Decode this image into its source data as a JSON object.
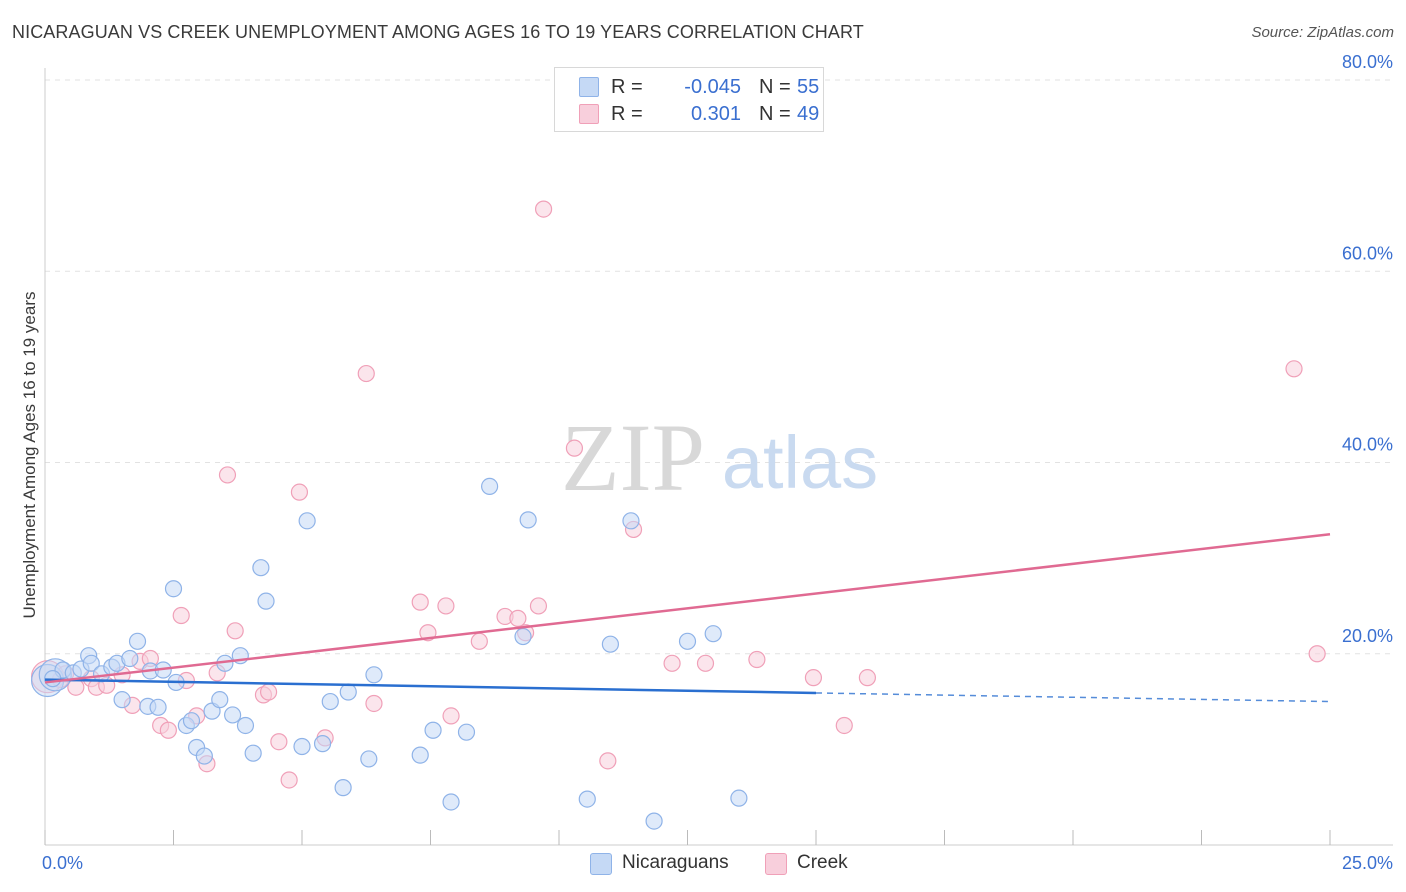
{
  "title": "NICARAGUAN VS CREEK UNEMPLOYMENT AMONG AGES 16 TO 19 YEARS CORRELATION CHART",
  "source": "Source: ZipAtlas.com",
  "watermark": {
    "zip": "ZIP",
    "atlas": "atlas"
  },
  "legend": {
    "rows": [
      {
        "r_label": "R =",
        "r_value": "-0.045",
        "n_label": "N =",
        "n_value": "55"
      },
      {
        "r_label": "R =",
        "r_value": "0.301",
        "n_label": "N =",
        "n_value": "49"
      }
    ],
    "bottom": [
      "Nicaraguans",
      "Creek"
    ]
  },
  "chart_data": {
    "type": "scatter",
    "title": "NICARAGUAN VS CREEK UNEMPLOYMENT AMONG AGES 16 TO 19 YEARS CORRELATION CHART",
    "xlabel": "",
    "ylabel": "Unemployment Among Ages 16 to 19 years",
    "xlim": [
      0,
      25
    ],
    "ylim": [
      0,
      80
    ],
    "x_tick_labels": [
      "0.0%",
      "25.0%"
    ],
    "y_ticks": [
      20,
      40,
      60,
      80
    ],
    "y_tick_labels": [
      "20.0%",
      "40.0%",
      "60.0%",
      "80.0%"
    ],
    "grid": true,
    "series": [
      {
        "name": "Nicaraguans",
        "color": "#8fb3e8",
        "fill": "#c5d9f5",
        "line_color": "#2a6fd0",
        "R": -0.045,
        "N": 55,
        "trend": {
          "x0": 0,
          "y0": 17.3,
          "x1": 15,
          "y1": 15.9,
          "dash_to_x": 25,
          "dash_to_y": 15.0
        },
        "points": [
          [
            0.05,
            17.2,
            "lg"
          ],
          [
            0.2,
            17.8,
            "lg"
          ],
          [
            0.35,
            18.3
          ],
          [
            0.55,
            18.0
          ],
          [
            0.7,
            18.4
          ],
          [
            0.85,
            19.8
          ],
          [
            0.9,
            19.0
          ],
          [
            1.1,
            17.9
          ],
          [
            1.3,
            18.6
          ],
          [
            1.4,
            19.0
          ],
          [
            1.5,
            15.2
          ],
          [
            1.65,
            19.5
          ],
          [
            1.8,
            21.3
          ],
          [
            2.0,
            14.5
          ],
          [
            2.05,
            18.2
          ],
          [
            2.2,
            14.4
          ],
          [
            2.3,
            18.3
          ],
          [
            2.5,
            26.8
          ],
          [
            2.55,
            17.0
          ],
          [
            2.75,
            12.5
          ],
          [
            2.85,
            13.0
          ],
          [
            2.95,
            10.2
          ],
          [
            3.1,
            9.3
          ],
          [
            3.25,
            14.0
          ],
          [
            3.4,
            15.2
          ],
          [
            3.5,
            19.0
          ],
          [
            3.65,
            13.6
          ],
          [
            3.8,
            19.8
          ],
          [
            3.9,
            12.5
          ],
          [
            4.05,
            9.6
          ],
          [
            4.2,
            29.0
          ],
          [
            4.3,
            25.5
          ],
          [
            5.1,
            33.9
          ],
          [
            5.0,
            10.3
          ],
          [
            5.4,
            10.6
          ],
          [
            5.55,
            15.0
          ],
          [
            5.8,
            6.0
          ],
          [
            5.9,
            16.0
          ],
          [
            6.3,
            9.0
          ],
          [
            6.4,
            17.8
          ],
          [
            7.3,
            9.4
          ],
          [
            7.55,
            12.0
          ],
          [
            7.9,
            4.5
          ],
          [
            8.2,
            11.8
          ],
          [
            8.65,
            37.5
          ],
          [
            9.3,
            21.8
          ],
          [
            9.4,
            34.0
          ],
          [
            10.55,
            4.8
          ],
          [
            11.0,
            21.0
          ],
          [
            11.4,
            33.9
          ],
          [
            11.85,
            2.5
          ],
          [
            12.5,
            21.3
          ],
          [
            13.0,
            22.1
          ],
          [
            13.5,
            4.9
          ],
          [
            0.15,
            17.4
          ]
        ]
      },
      {
        "name": "Creek",
        "color": "#f0a0b8",
        "fill": "#f8cfdc",
        "line_color": "#e06a92",
        "R": 0.301,
        "N": 49,
        "trend": {
          "x0": 0,
          "y0": 17.0,
          "x1": 25,
          "y1": 32.5
        },
        "points": [
          [
            0.05,
            17.6,
            "lg"
          ],
          [
            0.3,
            17.3
          ],
          [
            0.6,
            16.5
          ],
          [
            0.9,
            17.4
          ],
          [
            1.0,
            16.5
          ],
          [
            1.2,
            16.7
          ],
          [
            1.5,
            17.8
          ],
          [
            1.7,
            14.6
          ],
          [
            1.85,
            19.2
          ],
          [
            2.05,
            19.5
          ],
          [
            2.25,
            12.5
          ],
          [
            2.4,
            12.0
          ],
          [
            2.65,
            24.0
          ],
          [
            2.75,
            17.2
          ],
          [
            2.95,
            13.5
          ],
          [
            3.15,
            8.5
          ],
          [
            3.35,
            18.0
          ],
          [
            3.55,
            38.7
          ],
          [
            3.7,
            22.4
          ],
          [
            4.25,
            15.7
          ],
          [
            4.35,
            16.0
          ],
          [
            4.55,
            10.8
          ],
          [
            4.75,
            6.8
          ],
          [
            4.95,
            36.9
          ],
          [
            5.45,
            11.2
          ],
          [
            6.25,
            49.3
          ],
          [
            6.4,
            14.8
          ],
          [
            7.3,
            25.4
          ],
          [
            7.45,
            22.2
          ],
          [
            7.8,
            25.0
          ],
          [
            7.9,
            13.5
          ],
          [
            8.45,
            21.3
          ],
          [
            8.95,
            23.9
          ],
          [
            9.2,
            23.7
          ],
          [
            9.35,
            22.2
          ],
          [
            9.6,
            25.0
          ],
          [
            9.7,
            66.5
          ],
          [
            10.3,
            41.5
          ],
          [
            10.95,
            8.8
          ],
          [
            11.45,
            33.0
          ],
          [
            12.2,
            19.0
          ],
          [
            12.85,
            19.0
          ],
          [
            13.85,
            19.4
          ],
          [
            14.95,
            17.5
          ],
          [
            15.55,
            12.5
          ],
          [
            16.0,
            17.5
          ],
          [
            24.3,
            49.8
          ],
          [
            24.75,
            20.0
          ],
          [
            0.4,
            17.9
          ]
        ]
      }
    ]
  }
}
